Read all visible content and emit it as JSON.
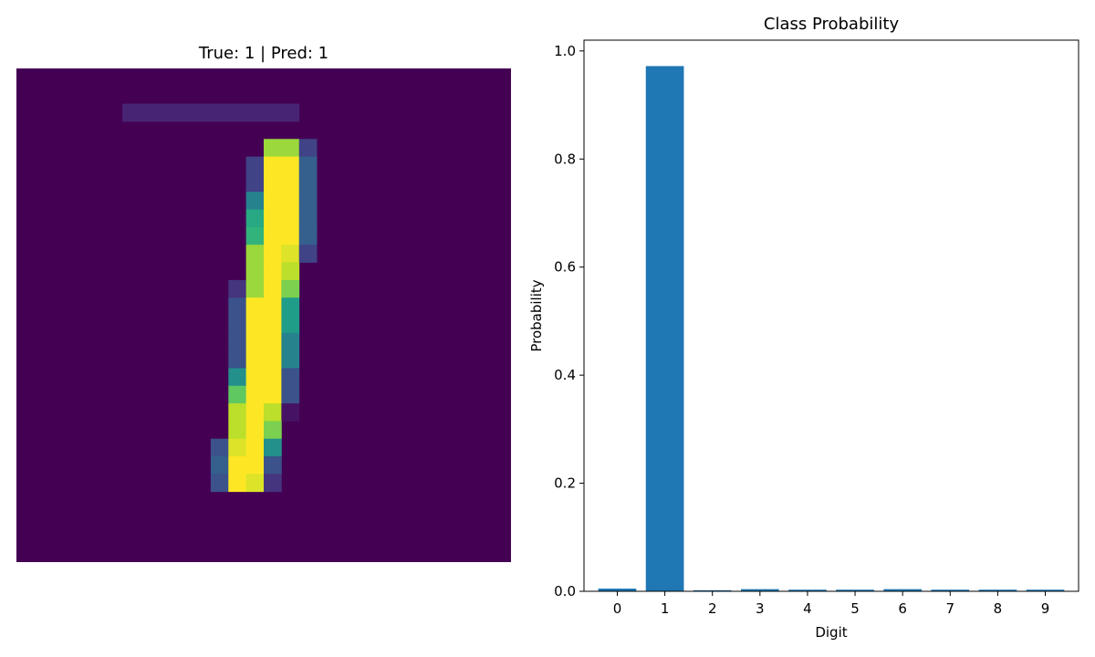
{
  "chart_data": [
    {
      "type": "heatmap",
      "title": "True: 1 | Pred: 1",
      "rows": 28,
      "cols": 28,
      "pixels": [
        [
          2,
          6,
          0.1
        ],
        [
          2,
          7,
          0.1
        ],
        [
          2,
          8,
          0.1
        ],
        [
          2,
          9,
          0.1
        ],
        [
          2,
          10,
          0.1
        ],
        [
          2,
          11,
          0.1
        ],
        [
          2,
          12,
          0.1
        ],
        [
          2,
          13,
          0.1
        ],
        [
          2,
          14,
          0.1
        ],
        [
          2,
          15,
          0.1
        ],
        [
          4,
          14,
          0.85
        ],
        [
          4,
          15,
          0.85
        ],
        [
          4,
          16,
          0.2
        ],
        [
          5,
          13,
          0.2
        ],
        [
          5,
          14,
          1.0
        ],
        [
          5,
          15,
          1.0
        ],
        [
          5,
          16,
          0.3
        ],
        [
          6,
          13,
          0.2
        ],
        [
          6,
          14,
          1.0
        ],
        [
          6,
          15,
          1.0
        ],
        [
          6,
          16,
          0.3
        ],
        [
          7,
          13,
          0.45
        ],
        [
          7,
          14,
          1.0
        ],
        [
          7,
          15,
          1.0
        ],
        [
          7,
          16,
          0.3
        ],
        [
          8,
          13,
          0.6
        ],
        [
          8,
          14,
          1.0
        ],
        [
          8,
          15,
          1.0
        ],
        [
          8,
          16,
          0.3
        ],
        [
          9,
          13,
          0.65
        ],
        [
          9,
          14,
          1.0
        ],
        [
          9,
          15,
          1.0
        ],
        [
          9,
          16,
          0.3
        ],
        [
          10,
          13,
          0.85
        ],
        [
          10,
          14,
          1.0
        ],
        [
          10,
          15,
          0.95
        ],
        [
          10,
          16,
          0.2
        ],
        [
          11,
          13,
          0.85
        ],
        [
          11,
          14,
          1.0
        ],
        [
          11,
          15,
          0.9
        ],
        [
          12,
          12,
          0.15
        ],
        [
          12,
          13,
          0.85
        ],
        [
          12,
          14,
          1.0
        ],
        [
          12,
          15,
          0.8
        ],
        [
          13,
          12,
          0.25
        ],
        [
          13,
          13,
          1.0
        ],
        [
          13,
          14,
          1.0
        ],
        [
          13,
          15,
          0.55
        ],
        [
          14,
          12,
          0.25
        ],
        [
          14,
          13,
          1.0
        ],
        [
          14,
          14,
          1.0
        ],
        [
          14,
          15,
          0.55
        ],
        [
          15,
          12,
          0.25
        ],
        [
          15,
          13,
          1.0
        ],
        [
          15,
          14,
          1.0
        ],
        [
          15,
          15,
          0.45
        ],
        [
          16,
          12,
          0.25
        ],
        [
          16,
          13,
          1.0
        ],
        [
          16,
          14,
          1.0
        ],
        [
          16,
          15,
          0.45
        ],
        [
          17,
          12,
          0.5
        ],
        [
          17,
          13,
          1.0
        ],
        [
          17,
          14,
          1.0
        ],
        [
          17,
          15,
          0.25
        ],
        [
          18,
          12,
          0.75
        ],
        [
          18,
          13,
          1.0
        ],
        [
          18,
          14,
          1.0
        ],
        [
          18,
          15,
          0.25
        ],
        [
          19,
          12,
          0.9
        ],
        [
          19,
          13,
          1.0
        ],
        [
          19,
          14,
          0.9
        ],
        [
          19,
          15,
          0.05
        ],
        [
          20,
          12,
          0.9
        ],
        [
          20,
          13,
          1.0
        ],
        [
          20,
          14,
          0.8
        ],
        [
          21,
          11,
          0.25
        ],
        [
          21,
          12,
          0.95
        ],
        [
          21,
          13,
          1.0
        ],
        [
          21,
          14,
          0.5
        ],
        [
          22,
          11,
          0.3
        ],
        [
          22,
          12,
          1.0
        ],
        [
          22,
          13,
          1.0
        ],
        [
          22,
          14,
          0.25
        ],
        [
          23,
          11,
          0.25
        ],
        [
          23,
          12,
          1.0
        ],
        [
          23,
          13,
          0.95
        ],
        [
          23,
          14,
          0.15
        ]
      ]
    },
    {
      "type": "bar",
      "title": "Class Probability",
      "xlabel": "Digit",
      "ylabel": "Probability",
      "categories": [
        "0",
        "1",
        "2",
        "3",
        "4",
        "5",
        "6",
        "7",
        "8",
        "9"
      ],
      "values": [
        0.005,
        0.972,
        0.002,
        0.004,
        0.003,
        0.003,
        0.004,
        0.003,
        0.003,
        0.003
      ],
      "ylim": [
        0,
        1.02
      ],
      "yticks": [
        "0.0",
        "0.2",
        "0.4",
        "0.6",
        "0.8",
        "1.0"
      ],
      "color": "#1f77b4",
      "grid": false
    }
  ]
}
